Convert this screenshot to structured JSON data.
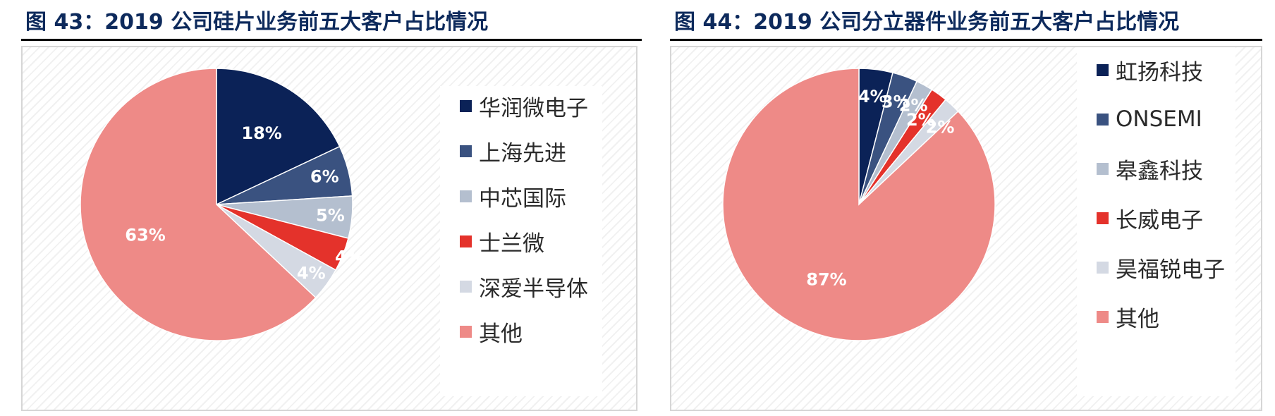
{
  "chart_data": [
    {
      "type": "pie",
      "title": "图 43：2019 公司硅片业务前五大客户占比情况",
      "categories": [
        "华润微电子",
        "上海先进",
        "中芯国际",
        "士兰微",
        "深爱半导体",
        "其他"
      ],
      "values": [
        18,
        6,
        5,
        4,
        4,
        63
      ],
      "labels": [
        "18%",
        "6%",
        "5%",
        "4%",
        "4%",
        "63%"
      ],
      "colors": [
        "#0b2257",
        "#3a5280",
        "#b4bfcf",
        "#e4322b",
        "#d4d9e3",
        "#ee8a87"
      ],
      "legend": "right"
    },
    {
      "type": "pie",
      "title": "图 44：2019 公司分立器件业务前五大客户占比情况",
      "categories": [
        "虹扬科技",
        "ONSEMI",
        "皋鑫科技",
        "长威电子",
        "昊福锐电子",
        "其他"
      ],
      "values": [
        4,
        3,
        2,
        2,
        2,
        87
      ],
      "labels": [
        "4%",
        "3%",
        "2%",
        "2%",
        "2%",
        "87%"
      ],
      "colors": [
        "#0b2257",
        "#3a5280",
        "#b4bfcf",
        "#e4322b",
        "#d4d9e3",
        "#ee8a87"
      ],
      "legend": "right"
    }
  ]
}
